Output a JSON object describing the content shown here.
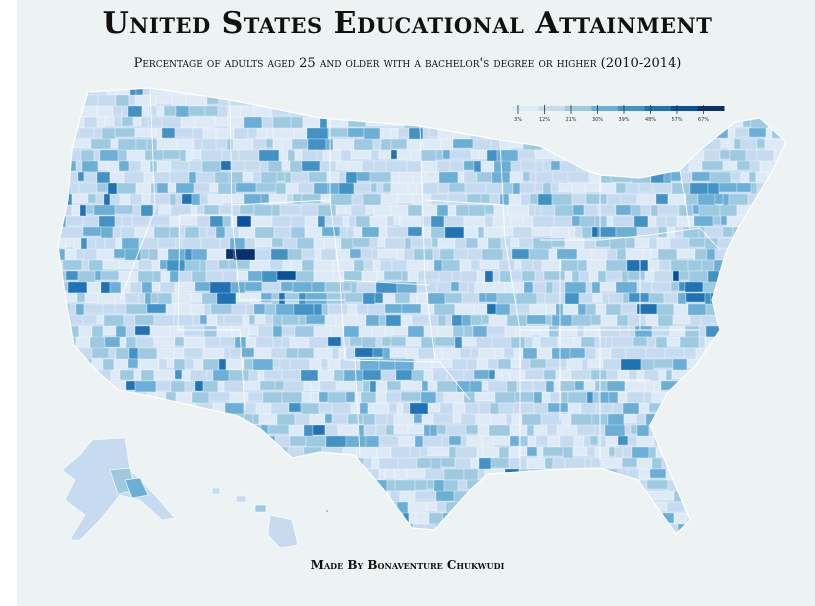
{
  "title": "United States Educational Attainment",
  "subtitle": "Percentage of adults aged 25 and older with a bachelor's degree or higher (2010-2014)",
  "credit": "Made By Bonaventure Chukwudi",
  "legend": {
    "tick_labels": [
      "3%",
      "12%",
      "21%",
      "30%",
      "39%",
      "48%",
      "57%",
      "67%"
    ],
    "colors": [
      "#deebf7",
      "#c6dbef",
      "#9ecae1",
      "#6baed6",
      "#4292c6",
      "#2171b5",
      "#08519c",
      "#08306b"
    ]
  },
  "colors": {
    "background": "#edf2f2",
    "page": "#ffffff",
    "borders": "#ffffff",
    "text": "#111111"
  }
}
